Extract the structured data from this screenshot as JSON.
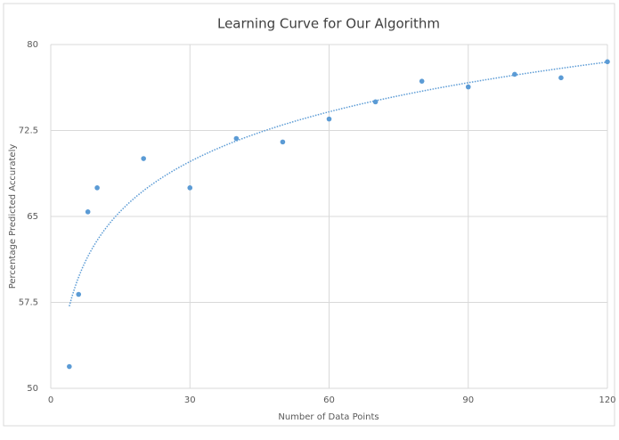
{
  "chart_data": {
    "type": "scatter",
    "title": "Learning Curve for Our Algorithm",
    "x_label": "Number of Data Points",
    "y_label": "Percentage Predicted Accurately",
    "x": [
      4,
      6,
      8,
      10,
      20,
      30,
      40,
      50,
      60,
      70,
      80,
      90,
      100,
      110,
      120
    ],
    "values": [
      51.9,
      58.2,
      65.4,
      67.5,
      70.05,
      67.5,
      71.8,
      71.5,
      73.5,
      75.0,
      76.8,
      76.3,
      77.4,
      77.1,
      78.5
    ],
    "color": "#5b9bd5",
    "trendline": "logarithmic",
    "xlim": [
      0,
      120
    ],
    "xticks": [
      0,
      30,
      60,
      90,
      120
    ],
    "ylim": [
      50,
      80
    ],
    "yticks": [
      50,
      57.5,
      65,
      72.5,
      80
    ],
    "grid": true
  }
}
